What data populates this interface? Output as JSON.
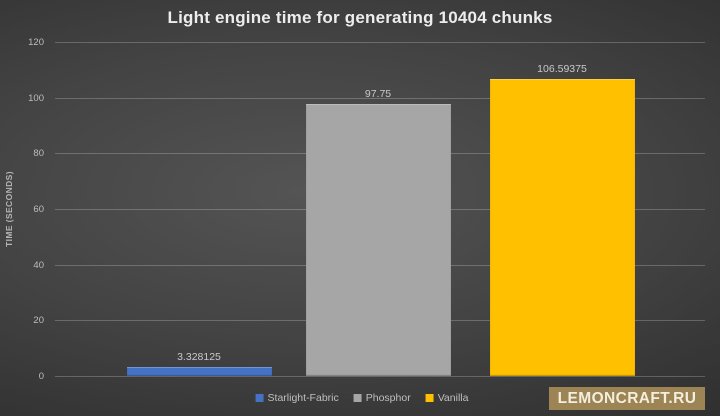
{
  "title": "Light engine time for generating 10404 chunks",
  "y_axis_title": "TIME (SECONDS)",
  "watermark": {
    "label": "LEMONCRAFT.RU",
    "bg_color": "#9c8454",
    "text_color": "#f3eedd"
  },
  "chart_data": {
    "type": "bar",
    "title": "Light engine time for generating 10404 chunks",
    "categories": [
      "Starlight-Fabric",
      "Phosphor",
      "Vanilla"
    ],
    "values": [
      3.328125,
      97.75,
      106.59375
    ],
    "value_labels": [
      "3.328125",
      "97.75",
      "106.59375"
    ],
    "series_colors": [
      "#4472c4",
      "#a6a6a6",
      "#ffc000"
    ],
    "xlabel": "",
    "ylabel": "TIME (SECONDS)",
    "ylim": [
      0,
      120
    ],
    "yticks": [
      0,
      20,
      40,
      60,
      80,
      100,
      120
    ],
    "grid": true,
    "legend_position": "bottom",
    "background": "dark-gray-gradient"
  }
}
